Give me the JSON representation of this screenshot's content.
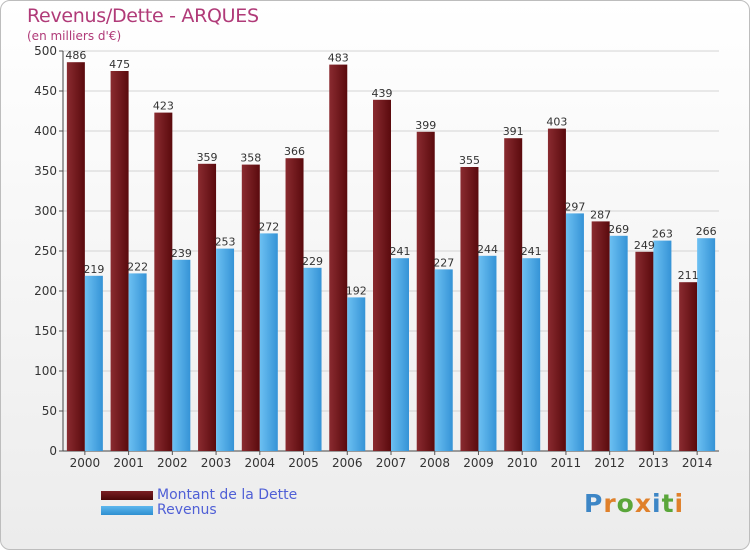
{
  "title": "Revenus/Dette - ARQUES",
  "subtitle": "(en milliers d'€)",
  "logo": "Proxiti",
  "colors": {
    "dette": "#6b1216",
    "revenus": "#4aa6e6",
    "title": "#b03a78",
    "legend": "#4f5fd6"
  },
  "chart_data": {
    "type": "bar",
    "categories": [
      "2000",
      "2001",
      "2002",
      "2003",
      "2004",
      "2005",
      "2006",
      "2007",
      "2008",
      "2009",
      "2010",
      "2011",
      "2012",
      "2013",
      "2014"
    ],
    "series": [
      {
        "name": "Montant de la Dette",
        "values": [
          486,
          475,
          423,
          359,
          358,
          366,
          483,
          439,
          399,
          355,
          391,
          403,
          287,
          249,
          211
        ]
      },
      {
        "name": "Revenus",
        "values": [
          219,
          222,
          239,
          253,
          272,
          229,
          192,
          241,
          227,
          244,
          241,
          297,
          269,
          263,
          266
        ]
      }
    ],
    "ylim": [
      0,
      500
    ],
    "yticks": [
      0,
      50,
      100,
      150,
      200,
      250,
      300,
      350,
      400,
      450,
      500
    ],
    "grid": true,
    "legend_position": "bottom-left"
  }
}
